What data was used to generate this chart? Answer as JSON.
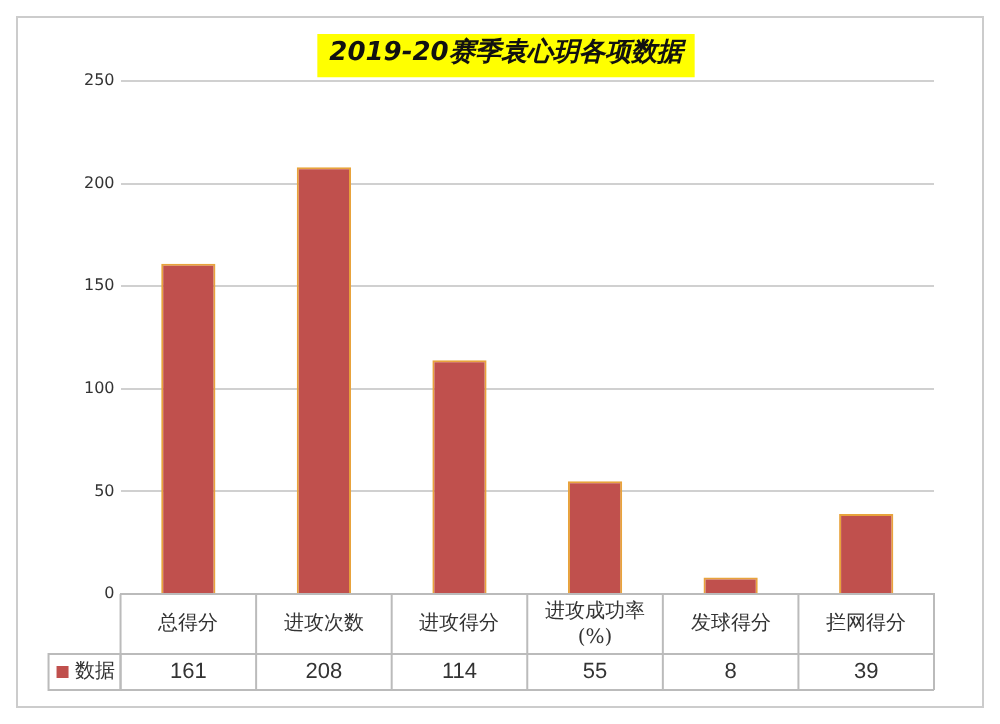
{
  "chart_data": {
    "type": "bar",
    "title": "2019-20赛季袁心玥各项数据",
    "categories": [
      "总得分",
      "进攻次数",
      "进攻得分",
      "进攻成功率(%)",
      "发球得分",
      "拦网得分"
    ],
    "series": [
      {
        "name": "数据",
        "color": "#c0504d",
        "values": [
          161,
          208,
          114,
          55,
          8,
          39
        ]
      }
    ],
    "ylim": [
      0,
      250
    ],
    "yticks": [
      0,
      50,
      100,
      150,
      200,
      250
    ],
    "grid": "y",
    "data_labels": true
  }
}
